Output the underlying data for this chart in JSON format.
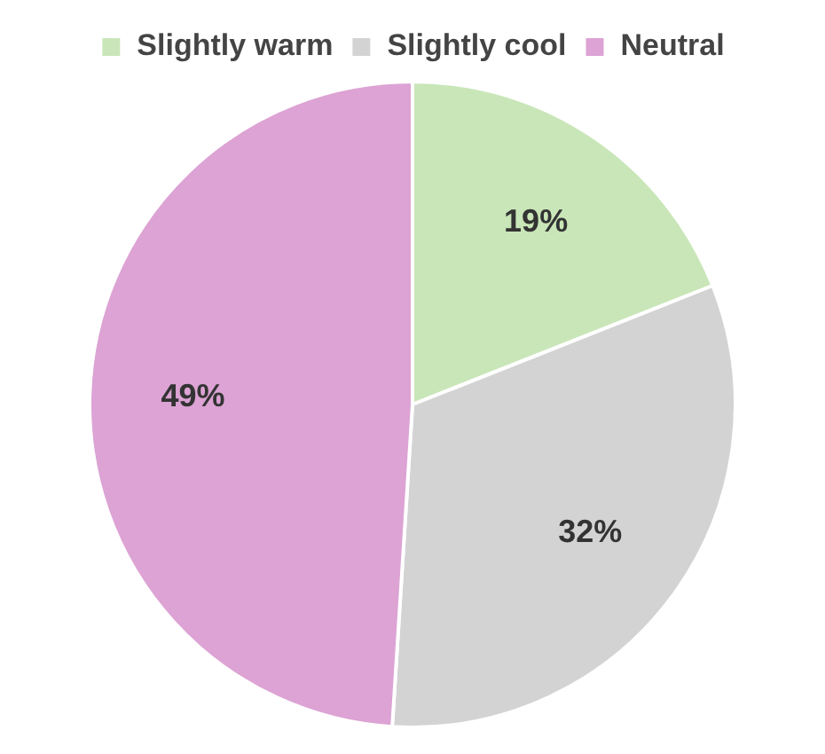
{
  "chart_data": {
    "type": "pie",
    "categories": [
      "Slightly warm",
      "Slightly cool",
      "Neutral"
    ],
    "values": [
      19,
      32,
      49
    ],
    "colors": [
      "#c9e6b8",
      "#d3d3d3",
      "#dca3d4"
    ],
    "value_labels": [
      "19%",
      "32%",
      "49%"
    ],
    "legend": "top"
  }
}
